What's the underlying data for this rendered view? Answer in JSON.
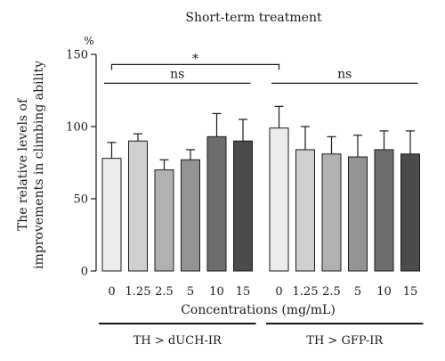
{
  "chart_data": {
    "type": "bar",
    "title": "Short-term treatment",
    "ylabel_lines": [
      "The relative levels of",
      "improvements in climbing ability"
    ],
    "y_unit": "%",
    "xlabel": "Concentrations (mg/mL)",
    "ylim": [
      0,
      150
    ],
    "yticks": [
      0,
      50,
      100,
      150
    ],
    "groups": [
      {
        "name": "TH > dUCH-IR",
        "categories": [
          "0",
          "1.25",
          "2.5",
          "5",
          "10",
          "15"
        ],
        "values": [
          78,
          90,
          70,
          77,
          93,
          90
        ],
        "errors": [
          11,
          5,
          7,
          7,
          16,
          15
        ],
        "colors": [
          "#ececec",
          "#cfcfcf",
          "#b1b1b1",
          "#949494",
          "#6e6e6e",
          "#4b4b4b"
        ]
      },
      {
        "name": "TH > GFP-IR",
        "categories": [
          "0",
          "1.25",
          "2.5",
          "5",
          "10",
          "15"
        ],
        "values": [
          99,
          84,
          81,
          79,
          84,
          81
        ],
        "errors": [
          15,
          16,
          12,
          15,
          13,
          16
        ],
        "colors": [
          "#ececec",
          "#cfcfcf",
          "#b1b1b1",
          "#949494",
          "#6e6e6e",
          "#4b4b4b"
        ]
      }
    ],
    "annotations": [
      {
        "label": "*",
        "type": "bracket",
        "from": [
          0,
          0
        ],
        "to": [
          1,
          0
        ],
        "y": 143
      },
      {
        "label": "ns",
        "type": "line",
        "from": [
          0,
          0
        ],
        "to": [
          0,
          5
        ],
        "y": 130
      },
      {
        "label": "ns",
        "type": "line",
        "from": [
          1,
          0
        ],
        "to": [
          1,
          5
        ],
        "y": 130
      }
    ]
  }
}
